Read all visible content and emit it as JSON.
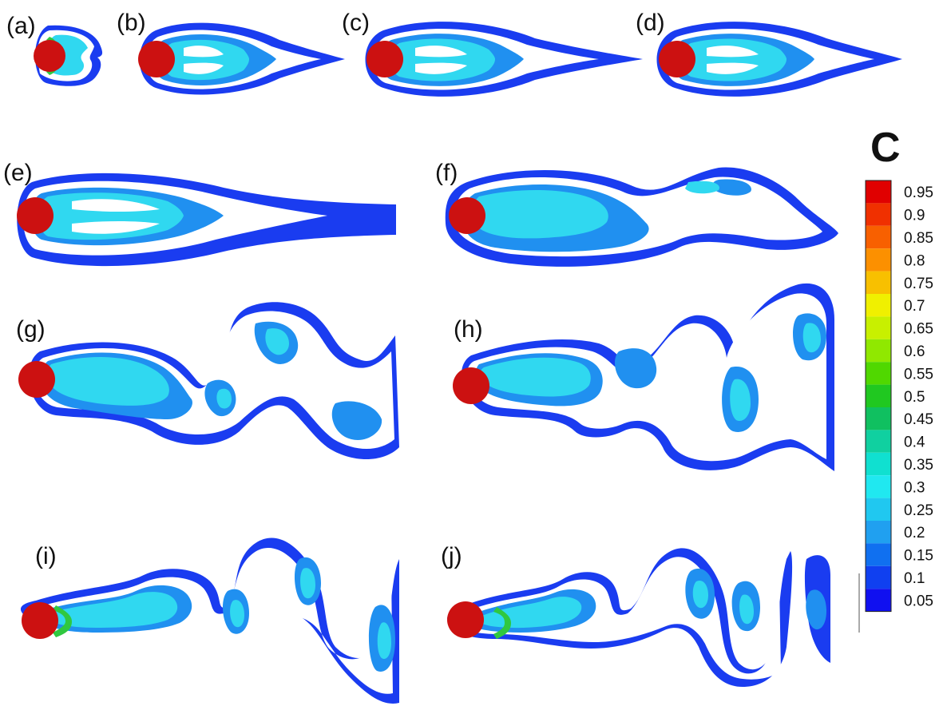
{
  "panels": [
    {
      "id": "a",
      "label": "(a)",
      "kind": "short"
    },
    {
      "id": "b",
      "label": "(b)",
      "kind": "tail"
    },
    {
      "id": "c",
      "label": "(c)",
      "kind": "tail"
    },
    {
      "id": "d",
      "label": "(d)",
      "kind": "tail"
    },
    {
      "id": "e",
      "label": "(e)",
      "kind": "tail"
    },
    {
      "id": "f",
      "label": "(f)",
      "kind": "wave"
    },
    {
      "id": "g",
      "label": "(g)",
      "kind": "wave"
    },
    {
      "id": "h",
      "label": "(h)",
      "kind": "wave"
    },
    {
      "id": "i",
      "label": "(i)",
      "kind": "wave"
    },
    {
      "id": "j",
      "label": "(j)",
      "kind": "wave"
    }
  ],
  "legend": {
    "title": "C",
    "ticks": [
      "0.95",
      "0.9",
      "0.85",
      "0.8",
      "0.75",
      "0.7",
      "0.65",
      "0.6",
      "0.55",
      "0.5",
      "0.45",
      "0.4",
      "0.35",
      "0.3",
      "0.25",
      "0.2",
      "0.15",
      "0.1",
      "0.05"
    ],
    "colors": [
      "#e00000",
      "#f03000",
      "#f86000",
      "#fc9000",
      "#f8c000",
      "#f0f000",
      "#c8f000",
      "#90e800",
      "#50d800",
      "#20c820",
      "#10c060",
      "#10d0a0",
      "#10e0d0",
      "#20e8f0",
      "#20c8f0",
      "#20a0f0",
      "#1070f0",
      "#1040f0",
      "#1010f0"
    ]
  },
  "colors": {
    "body": "#cc1111",
    "outer": "#1a3cf0",
    "ring": "#2090f0",
    "inner": "#30d8f0",
    "green": "#30c840",
    "yellow": "#e8e840",
    "background": "#ffffff"
  }
}
